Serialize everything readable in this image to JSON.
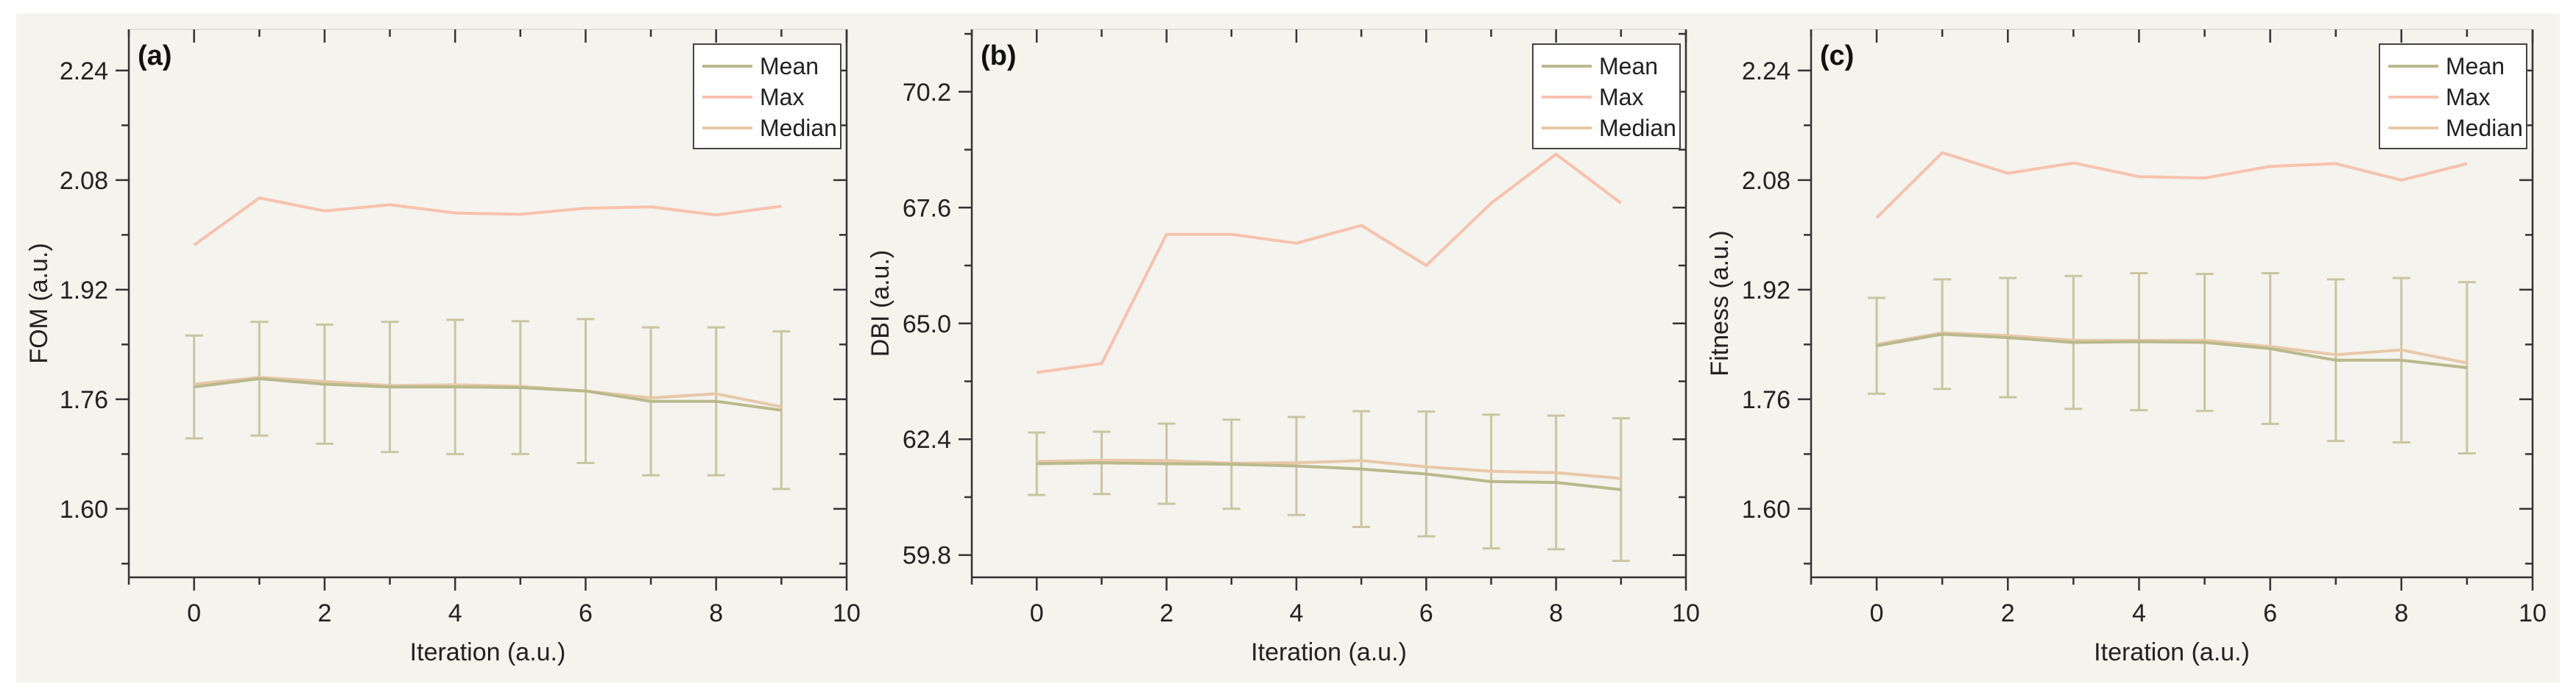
{
  "chart_data": [
    {
      "type": "line",
      "panel_label": "(a)",
      "xlabel": "Iteration (a.u.)",
      "ylabel": "FOM (a.u.)",
      "xlim": [
        -1,
        10
      ],
      "ylim": [
        1.5,
        2.3
      ],
      "x_ticks": [
        0,
        2,
        4,
        6,
        8,
        10
      ],
      "x_tick_labels": [
        "0",
        "2",
        "4",
        "6",
        "8",
        "10"
      ],
      "y_ticks": [
        1.6,
        1.76,
        1.92,
        2.08,
        2.24
      ],
      "y_tick_labels": [
        "1.60",
        "1.76",
        "1.92",
        "2.08",
        "2.24"
      ],
      "x": [
        0,
        1,
        2,
        3,
        4,
        5,
        6,
        7,
        8,
        9
      ],
      "series": [
        {
          "name": "Mean",
          "color": "#b9b98c",
          "values": [
            1.778,
            1.79,
            1.782,
            1.778,
            1.778,
            1.777,
            1.772,
            1.757,
            1.757,
            1.744
          ],
          "error": [
            0.075,
            0.083,
            0.087,
            0.095,
            0.098,
            0.097,
            0.105,
            0.108,
            0.108,
            0.115
          ]
        },
        {
          "name": "Max",
          "color": "#f7c2ad",
          "values": [
            1.985,
            2.054,
            2.035,
            2.044,
            2.032,
            2.03,
            2.039,
            2.041,
            2.029,
            2.042
          ]
        },
        {
          "name": "Median",
          "color": "#e8c8a8",
          "values": [
            1.782,
            1.792,
            1.786,
            1.78,
            1.781,
            1.779,
            1.772,
            1.762,
            1.768,
            1.749
          ]
        }
      ],
      "legend": [
        "Mean",
        "Max",
        "Median"
      ],
      "legend_position": "top-right",
      "grid": false
    },
    {
      "type": "line",
      "panel_label": "(b)",
      "xlabel": "Iteration (a.u.)",
      "ylabel": "DBI (a.u.)",
      "xlim": [
        -1,
        10
      ],
      "ylim": [
        59.3,
        71.6
      ],
      "x_ticks": [
        0,
        2,
        4,
        6,
        8,
        10
      ],
      "x_tick_labels": [
        "0",
        "2",
        "4",
        "6",
        "8",
        "10"
      ],
      "y_ticks": [
        59.8,
        62.4,
        65.0,
        67.6,
        70.2
      ],
      "y_tick_labels": [
        "59.8",
        "62.4",
        "65.0",
        "67.6",
        "70.2"
      ],
      "x": [
        0,
        1,
        2,
        3,
        4,
        5,
        6,
        7,
        8,
        9
      ],
      "series": [
        {
          "name": "Mean",
          "color": "#b9b98c",
          "values": [
            61.85,
            61.87,
            61.85,
            61.84,
            61.8,
            61.73,
            61.62,
            61.45,
            61.43,
            61.27
          ],
          "error": [
            0.7,
            0.7,
            0.9,
            1.0,
            1.1,
            1.3,
            1.4,
            1.5,
            1.5,
            1.6
          ]
        },
        {
          "name": "Max",
          "color": "#f7c2ad",
          "values": [
            63.9,
            64.1,
            67.0,
            67.0,
            66.8,
            67.2,
            66.3,
            67.7,
            68.8,
            67.7
          ]
        },
        {
          "name": "Median",
          "color": "#e8c8a8",
          "values": [
            61.9,
            61.93,
            61.92,
            61.86,
            61.87,
            61.92,
            61.78,
            61.68,
            61.65,
            61.52
          ]
        }
      ],
      "legend": [
        "Mean",
        "Max",
        "Median"
      ],
      "legend_position": "top-right",
      "grid": false
    },
    {
      "type": "line",
      "panel_label": "(c)",
      "xlabel": "Iteration (a.u.)",
      "ylabel": "Fitness (a.u.)",
      "xlim": [
        -1,
        10
      ],
      "ylim": [
        1.5,
        2.3
      ],
      "x_ticks": [
        0,
        2,
        4,
        6,
        8,
        10
      ],
      "x_tick_labels": [
        "0",
        "2",
        "4",
        "6",
        "8",
        "10"
      ],
      "y_ticks": [
        1.6,
        1.76,
        1.92,
        2.08,
        2.24
      ],
      "y_tick_labels": [
        "1.60",
        "1.76",
        "1.92",
        "2.08",
        "2.24"
      ],
      "x": [
        0,
        1,
        2,
        3,
        4,
        5,
        6,
        7,
        8,
        9
      ],
      "series": [
        {
          "name": "Mean",
          "color": "#b9b98c",
          "values": [
            1.838,
            1.855,
            1.85,
            1.843,
            1.844,
            1.843,
            1.834,
            1.817,
            1.817,
            1.806
          ],
          "error": [
            0.07,
            0.08,
            0.087,
            0.097,
            0.1,
            0.1,
            0.11,
            0.118,
            0.12,
            0.125
          ]
        },
        {
          "name": "Max",
          "color": "#f7c2ad",
          "values": [
            2.025,
            2.12,
            2.09,
            2.105,
            2.085,
            2.083,
            2.1,
            2.104,
            2.08,
            2.104
          ]
        },
        {
          "name": "Median",
          "color": "#e8c8a8",
          "values": [
            1.84,
            1.857,
            1.853,
            1.846,
            1.846,
            1.846,
            1.837,
            1.825,
            1.832,
            1.813
          ]
        }
      ],
      "legend": [
        "Mean",
        "Max",
        "Median"
      ],
      "legend_position": "top-right",
      "grid": false
    }
  ]
}
